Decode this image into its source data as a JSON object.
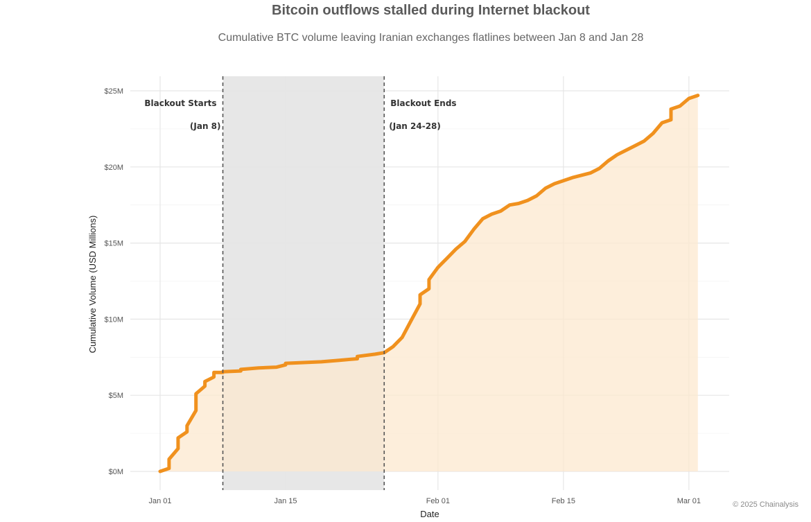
{
  "page": {
    "title": "Bitcoin outflows stalled during Internet blackout",
    "subtitle": "Cumulative BTC volume leaving Iranian exchanges flatlines between Jan 8 and Jan 28",
    "watermark": "© 2025 Chainalysis"
  },
  "chart_data": {
    "type": "area",
    "title": "Bitcoin outflows stalled during Internet blackout",
    "subtitle": "Cumulative BTC volume leaving Iranian exchanges flatlines between Jan 8 and Jan 28",
    "xlabel": "Date",
    "ylabel": "Cumulative Volume (USD Millions)",
    "x_tick_labels": [
      "Jan 01",
      "Jan 15",
      "Feb 01",
      "Feb 15",
      "Mar 01"
    ],
    "y_tick_labels": [
      "$0M",
      "$5M",
      "$10M",
      "$15M",
      "$20M",
      "$25M"
    ],
    "ylim": [
      0,
      25
    ],
    "grid": true,
    "line_color": "#f0911e",
    "fill_color": "#fce8cf",
    "shade_color": "#e5e5e5",
    "blackout_start_date": "Jan 08",
    "blackout_end_date": "Jan 26",
    "annotations": {
      "start_line1": "Blackout Starts",
      "start_line2": "(Jan 8)",
      "end_line1": "Blackout Ends",
      "end_line2": "(Jan 24-28)"
    },
    "series": [
      {
        "x": [
          "Jan 01",
          "Jan 02",
          "Jan 02",
          "Jan 03",
          "Jan 03",
          "Jan 04",
          "Jan 04",
          "Jan 05",
          "Jan 05",
          "Jan 05",
          "Jan 06",
          "Jan 06",
          "Jan 07",
          "Jan 07",
          "Jan 08",
          "Jan 08",
          "Jan 10",
          "Jan 10",
          "Jan 12",
          "Jan 14",
          "Jan 15",
          "Jan 15",
          "Jan 17",
          "Jan 19",
          "Jan 21",
          "Jan 23",
          "Jan 23",
          "Jan 25",
          "Jan 26",
          "Jan 27",
          "Jan 28",
          "Jan 29",
          "Jan 30",
          "Jan 30",
          "Jan 31",
          "Jan 31",
          "Feb 01",
          "Feb 02",
          "Feb 03",
          "Feb 04",
          "Feb 05",
          "Feb 06",
          "Feb 07",
          "Feb 08",
          "Feb 09",
          "Feb 10",
          "Feb 11",
          "Feb 12",
          "Feb 13",
          "Feb 14",
          "Feb 15",
          "Feb 16",
          "Feb 18",
          "Feb 19",
          "Feb 20",
          "Feb 21",
          "Feb 22",
          "Feb 23",
          "Feb 24",
          "Feb 25",
          "Feb 26",
          "Feb 27",
          "Feb 27",
          "Feb 28",
          "Mar 01",
          "Mar 02"
        ],
        "y": [
          0.0,
          0.2,
          0.8,
          1.5,
          2.2,
          2.6,
          3.0,
          4.0,
          4.9,
          5.1,
          5.6,
          5.9,
          6.2,
          6.5,
          6.5,
          6.55,
          6.6,
          6.7,
          6.8,
          6.85,
          7.0,
          7.1,
          7.15,
          7.2,
          7.3,
          7.4,
          7.55,
          7.7,
          7.8,
          8.2,
          8.8,
          9.9,
          11.0,
          11.6,
          12.0,
          12.6,
          13.4,
          14.0,
          14.6,
          15.1,
          15.9,
          16.6,
          16.9,
          17.1,
          17.5,
          17.6,
          17.8,
          18.1,
          18.6,
          18.9,
          19.1,
          19.3,
          19.6,
          19.9,
          20.4,
          20.8,
          21.1,
          21.4,
          21.7,
          22.2,
          22.9,
          23.1,
          23.8,
          24.0,
          24.5,
          24.7
        ]
      }
    ]
  }
}
